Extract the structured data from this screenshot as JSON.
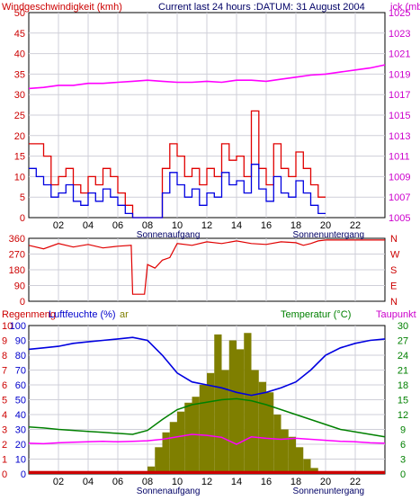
{
  "chart_data": [
    {
      "type": "line",
      "title": "Current last 24 hours :DATUM: 31 August 2004",
      "left_axis_label": "Windgeschwindigkeit (kmh)",
      "right_axis_label": "Luftdruck (mb)",
      "right_axis_label_visible": "ick (mb)",
      "x_tick_labels": [
        "02",
        "04",
        "06",
        "08",
        "10",
        "12",
        "14",
        "16",
        "18",
        "20",
        "22"
      ],
      "x_markers": [
        {
          "label": "Sonnenaufgang",
          "hour": 9.4
        },
        {
          "label": "Sonnenuntergang",
          "hour": 20.2
        }
      ],
      "left_ticks": [
        0,
        5,
        10,
        15,
        20,
        25,
        30,
        35,
        40,
        45,
        50
      ],
      "right_ticks": [
        1005,
        1007,
        1009,
        1011,
        1013,
        1015,
        1017,
        1019,
        1021,
        1023,
        1025
      ],
      "ylim_left": [
        0,
        50
      ],
      "ylim_right": [
        1005,
        1025
      ],
      "xlim_hours": [
        0,
        24
      ],
      "grid": true,
      "colors": {
        "gust": "#e00000",
        "wind": "#0000e0",
        "pressure": "#ff00ff"
      },
      "series": [
        {
          "key": "pressure",
          "axis": "right",
          "x": [
            0,
            1,
            2,
            3,
            4,
            5,
            6,
            7,
            8,
            9,
            10,
            11,
            12,
            13,
            14,
            15,
            16,
            17,
            18,
            19,
            20,
            21,
            22,
            23,
            24
          ],
          "values": [
            1017.6,
            1017.7,
            1017.9,
            1017.9,
            1018.1,
            1018.1,
            1018.2,
            1018.3,
            1018.4,
            1018.3,
            1018.2,
            1018.2,
            1018.3,
            1018.2,
            1018.4,
            1018.4,
            1018.3,
            1018.5,
            1018.7,
            1018.9,
            1019.0,
            1019.2,
            1019.4,
            1019.6,
            1019.9
          ]
        },
        {
          "key": "gust",
          "axis": "left",
          "x": [
            0,
            0.5,
            1,
            1.5,
            2,
            2.5,
            3,
            3.5,
            4,
            4.5,
            5,
            5.5,
            6,
            6.5,
            7,
            7.5,
            8,
            8.5,
            9,
            9.5,
            10,
            10.5,
            11,
            11.5,
            12,
            12.5,
            13,
            13.5,
            14,
            14.5,
            15,
            15.5,
            16,
            16.5,
            17,
            17.5,
            18,
            18.5,
            19,
            19.5
          ],
          "values": [
            18,
            18,
            15,
            8,
            10,
            12,
            8,
            6,
            10,
            8,
            12,
            10,
            6,
            3,
            0,
            0,
            0,
            0,
            12,
            18,
            15,
            10,
            12,
            8,
            12,
            10,
            18,
            14,
            15,
            10,
            26,
            12,
            8,
            18,
            12,
            10,
            16,
            12,
            8,
            5
          ]
        },
        {
          "key": "wind",
          "axis": "left",
          "x": [
            0,
            0.5,
            1,
            1.5,
            2,
            2.5,
            3,
            3.5,
            4,
            4.5,
            5,
            5.5,
            6,
            6.5,
            7,
            7.5,
            8,
            8.5,
            9,
            9.5,
            10,
            10.5,
            11,
            11.5,
            12,
            12.5,
            13,
            13.5,
            14,
            14.5,
            15,
            15.5,
            16,
            16.5,
            17,
            17.5,
            18,
            18.5,
            19,
            19.5
          ],
          "values": [
            12,
            10,
            8,
            5,
            6,
            8,
            4,
            3,
            6,
            4,
            7,
            5,
            3,
            1,
            0,
            0,
            0,
            0,
            6,
            11,
            8,
            5,
            7,
            3,
            6,
            5,
            11,
            8,
            9,
            6,
            13,
            7,
            4,
            10,
            6,
            5,
            9,
            6,
            3,
            1
          ]
        }
      ]
    },
    {
      "type": "line",
      "title": "",
      "ylabel": "",
      "left_ticks": [
        0,
        90,
        180,
        270,
        360
      ],
      "right_labels": [
        "N",
        "W",
        "S",
        "E",
        "N"
      ],
      "ylim": [
        0,
        360
      ],
      "xlim_hours": [
        0,
        24
      ],
      "grid": true,
      "colors": {
        "direction": "#e00000"
      },
      "series": [
        {
          "key": "direction",
          "x": [
            0,
            1,
            2,
            3,
            4,
            5,
            6,
            6.9,
            7.0,
            7.8,
            8.0,
            8.5,
            9.0,
            9.5,
            10,
            11,
            12,
            13,
            14,
            15,
            16,
            17,
            18,
            18.5,
            19,
            19.5,
            20,
            22,
            24
          ],
          "values": [
            320,
            300,
            330,
            310,
            325,
            305,
            315,
            320,
            40,
            40,
            210,
            190,
            235,
            250,
            330,
            320,
            340,
            330,
            345,
            330,
            325,
            340,
            335,
            320,
            330,
            345,
            350,
            350,
            350
          ]
        }
      ]
    },
    {
      "type": "line",
      "title": "",
      "left_axis_labels": [
        "Regenmenge (mm)",
        "Luftfeuchte (%)",
        "Solar"
      ],
      "left_axis_labels_visible": [
        "Regenmeng",
        "Luftfeuchte (%)",
        "ar"
      ],
      "right_axis_labels": [
        "Temperatur (°C)",
        "Taupunkt"
      ],
      "x_tick_labels": [
        "02",
        "04",
        "06",
        "08",
        "10",
        "12",
        "14",
        "16",
        "18",
        "20",
        "22"
      ],
      "x_markers": [
        {
          "label": "Sonnenaufgang",
          "hour": 9.4
        },
        {
          "label": "Sonnenuntergang",
          "hour": 20.2
        }
      ],
      "left_ticks_rain": [
        0,
        1,
        2,
        3,
        4,
        5,
        6,
        7,
        8,
        9,
        10
      ],
      "left_ticks_humidity": [
        0,
        10,
        20,
        30,
        40,
        50,
        60,
        70,
        80,
        90,
        100
      ],
      "right_ticks": [
        0,
        3,
        6,
        9,
        12,
        15,
        18,
        21,
        24,
        27,
        30
      ],
      "ylim_left_humidity": [
        0,
        100
      ],
      "ylim_right_temp": [
        0,
        30
      ],
      "xlim_hours": [
        0,
        24
      ],
      "grid": true,
      "colors": {
        "humidity": "#0000e0",
        "temperature": "#008000",
        "dewpoint": "#ff00ff",
        "solar": "#7f7f00",
        "rain": "#cc0000"
      },
      "series": [
        {
          "key": "humidity",
          "axis": "left",
          "x": [
            0,
            1,
            2,
            3,
            4,
            5,
            6,
            7,
            8,
            9,
            10,
            11,
            12,
            13,
            14,
            15,
            16,
            17,
            18,
            19,
            20,
            21,
            22,
            23,
            24
          ],
          "values": [
            84,
            85,
            86,
            88,
            89,
            90,
            91,
            92,
            90,
            80,
            68,
            62,
            60,
            58,
            55,
            53,
            55,
            58,
            62,
            70,
            80,
            85,
            88,
            90,
            91
          ]
        },
        {
          "key": "temperature",
          "axis": "right",
          "x": [
            0,
            1,
            2,
            3,
            4,
            5,
            6,
            7,
            8,
            9,
            10,
            11,
            12,
            13,
            14,
            15,
            16,
            17,
            18,
            19,
            20,
            21,
            22,
            23,
            24
          ],
          "values": [
            9.5,
            9.3,
            9.0,
            8.8,
            8.6,
            8.4,
            8.2,
            8.0,
            8.8,
            11.0,
            13.0,
            14.0,
            14.5,
            15.0,
            15.2,
            14.8,
            14.0,
            13.0,
            12.0,
            11.0,
            10.0,
            9.0,
            8.5,
            8.0,
            7.5
          ]
        },
        {
          "key": "dewpoint",
          "axis": "right",
          "x": [
            0,
            1,
            2,
            3,
            4,
            5,
            6,
            7,
            8,
            9,
            10,
            11,
            12,
            13,
            14,
            15,
            16,
            17,
            18,
            19,
            20,
            21,
            22,
            23,
            24
          ],
          "values": [
            6.2,
            6.1,
            6.3,
            6.4,
            6.5,
            6.6,
            6.5,
            6.6,
            6.7,
            7.0,
            7.5,
            8.0,
            7.8,
            7.4,
            6.0,
            7.5,
            7.2,
            7.0,
            7.2,
            7.0,
            6.8,
            6.6,
            6.5,
            6.3,
            6.2
          ]
        },
        {
          "key": "solar",
          "axis": "left",
          "x": [
            8.0,
            8.5,
            9.0,
            9.5,
            10.0,
            10.5,
            11.0,
            11.5,
            12.0,
            12.5,
            13.0,
            13.5,
            14.0,
            14.5,
            15.0,
            15.5,
            16.0,
            16.5,
            17.0,
            17.5,
            18.0,
            18.5,
            19.0,
            19.5,
            20.0
          ],
          "values": [
            5,
            18,
            28,
            35,
            42,
            48,
            52,
            60,
            68,
            94,
            70,
            90,
            84,
            95,
            70,
            62,
            55,
            40,
            30,
            25,
            18,
            10,
            4,
            1,
            0
          ]
        },
        {
          "key": "rain",
          "axis": "left",
          "x": [
            0,
            24
          ],
          "values": [
            0.2,
            0.2
          ]
        }
      ]
    }
  ]
}
